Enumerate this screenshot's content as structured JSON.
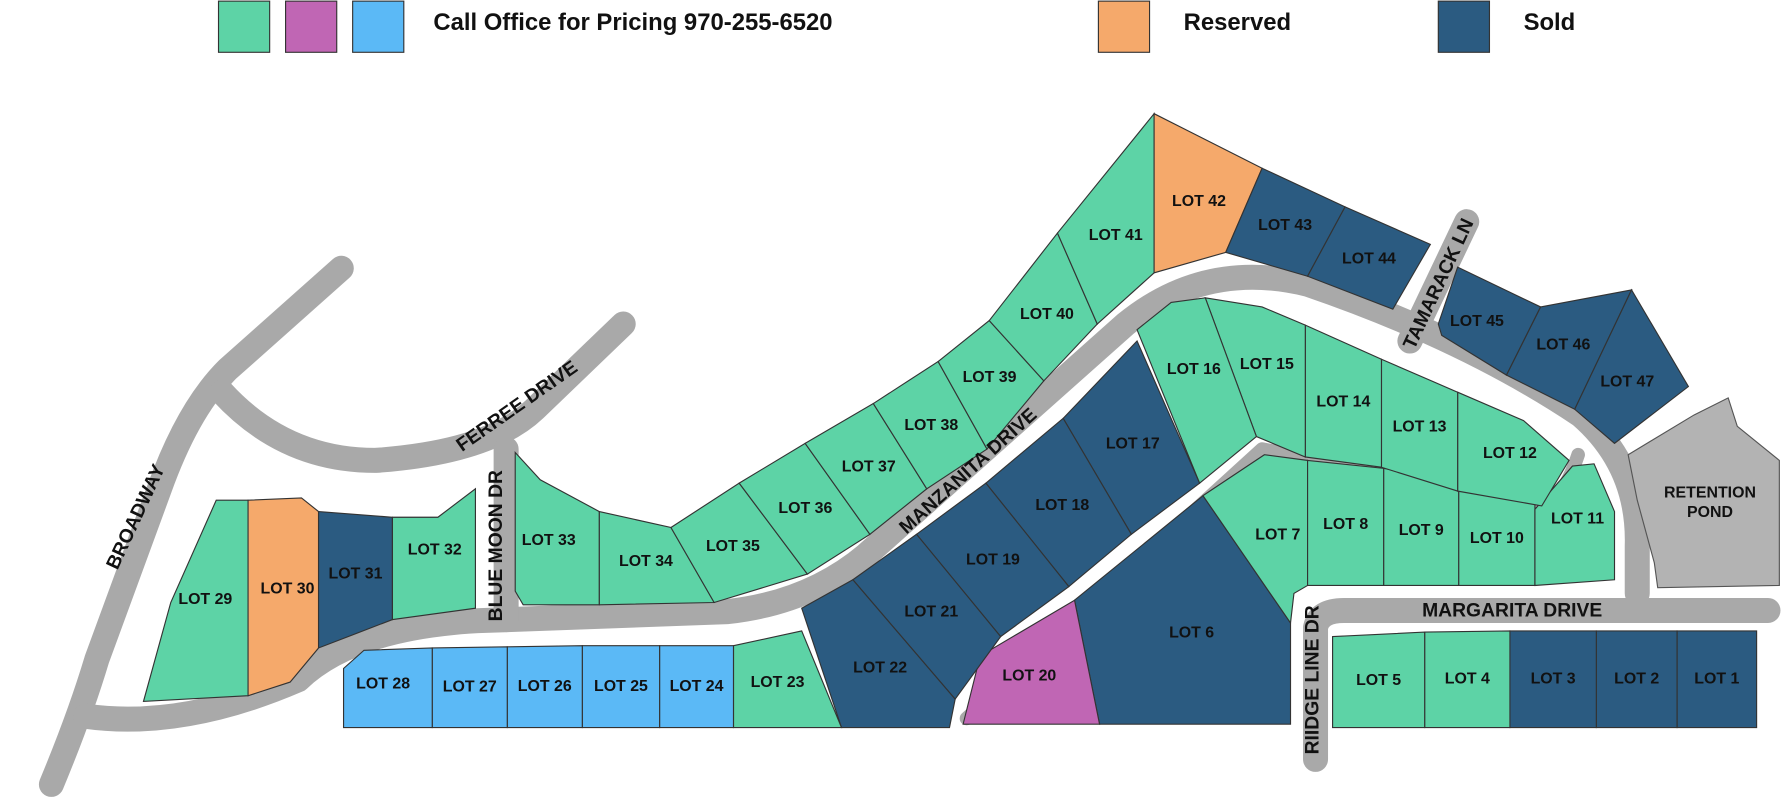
{
  "legend": {
    "items": [
      {
        "label": "Call Office for Pricing 970-255-6520",
        "colors": [
          "#5dd3a6",
          "#c066b4",
          "#5bb9f6"
        ]
      },
      {
        "label": "Reserved",
        "colors": [
          "#f5a96b"
        ]
      },
      {
        "label": "Sold",
        "colors": [
          "#2b5b81"
        ]
      }
    ]
  },
  "roads": [
    {
      "label": "BROADWAY"
    },
    {
      "label": "FERREE DRIVE"
    },
    {
      "label": "BLUE MOON DR"
    },
    {
      "label": "MANZANITA DRIVE"
    },
    {
      "label": "TAMARACK LN"
    },
    {
      "label": "MARGARITA DRIVE"
    },
    {
      "label": "RIIDGE LINE DR"
    }
  ],
  "pond": {
    "lines": [
      "RETENTION",
      "POND"
    ]
  },
  "lots": [
    {
      "label": "LOT 1",
      "color": "#2b5b81"
    },
    {
      "label": "LOT 2",
      "color": "#2b5b81"
    },
    {
      "label": "LOT 3",
      "color": "#2b5b81"
    },
    {
      "label": "LOT 4",
      "color": "#5dd3a6"
    },
    {
      "label": "LOT 5",
      "color": "#5dd3a6"
    },
    {
      "label": "LOT 6",
      "color": "#2b5b81"
    },
    {
      "label": "LOT 7",
      "color": "#5dd3a6"
    },
    {
      "label": "LOT 8",
      "color": "#5dd3a6"
    },
    {
      "label": "LOT 9",
      "color": "#5dd3a6"
    },
    {
      "label": "LOT 10",
      "color": "#5dd3a6"
    },
    {
      "label": "LOT 11",
      "color": "#5dd3a6"
    },
    {
      "label": "LOT 12",
      "color": "#5dd3a6"
    },
    {
      "label": "LOT 13",
      "color": "#5dd3a6"
    },
    {
      "label": "LOT 14",
      "color": "#5dd3a6"
    },
    {
      "label": "LOT 15",
      "color": "#5dd3a6"
    },
    {
      "label": "LOT 16",
      "color": "#5dd3a6"
    },
    {
      "label": "LOT 17",
      "color": "#2b5b81"
    },
    {
      "label": "LOT 18",
      "color": "#2b5b81"
    },
    {
      "label": "LOT 19",
      "color": "#2b5b81"
    },
    {
      "label": "LOT 20",
      "color": "#c066b4"
    },
    {
      "label": "LOT 21",
      "color": "#2b5b81"
    },
    {
      "label": "LOT 22",
      "color": "#2b5b81"
    },
    {
      "label": "LOT 23",
      "color": "#5dd3a6"
    },
    {
      "label": "LOT 24",
      "color": "#5bb9f6"
    },
    {
      "label": "LOT 25",
      "color": "#5bb9f6"
    },
    {
      "label": "LOT 26",
      "color": "#5bb9f6"
    },
    {
      "label": "LOT 27",
      "color": "#5bb9f6"
    },
    {
      "label": "LOT 28",
      "color": "#5bb9f6"
    },
    {
      "label": "LOT 29",
      "color": "#5dd3a6"
    },
    {
      "label": "LOT 30",
      "color": "#f5a96b"
    },
    {
      "label": "LOT 31",
      "color": "#2b5b81"
    },
    {
      "label": "LOT 32",
      "color": "#5dd3a6"
    },
    {
      "label": "LOT 33",
      "color": "#5dd3a6"
    },
    {
      "label": "LOT 34",
      "color": "#5dd3a6"
    },
    {
      "label": "LOT 35",
      "color": "#5dd3a6"
    },
    {
      "label": "LOT 36",
      "color": "#5dd3a6"
    },
    {
      "label": "LOT 37",
      "color": "#5dd3a6"
    },
    {
      "label": "LOT 38",
      "color": "#5dd3a6"
    },
    {
      "label": "LOT 39",
      "color": "#5dd3a6"
    },
    {
      "label": "LOT 40",
      "color": "#5dd3a6"
    },
    {
      "label": "LOT 41",
      "color": "#5dd3a6"
    },
    {
      "label": "LOT 42",
      "color": "#f5a96b"
    },
    {
      "label": "LOT 43",
      "color": "#2b5b81"
    },
    {
      "label": "LOT 44",
      "color": "#2b5b81"
    },
    {
      "label": "LOT 45",
      "color": "#2b5b81"
    },
    {
      "label": "LOT 46",
      "color": "#2b5b81"
    },
    {
      "label": "LOT 47",
      "color": "#2b5b81"
    }
  ]
}
